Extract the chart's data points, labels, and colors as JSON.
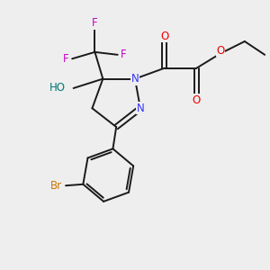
{
  "background_color": "#eeeeee",
  "atom_colors": {
    "C": "#000000",
    "N": "#3333ff",
    "O": "#ee0000",
    "F": "#cc00cc",
    "Br": "#cc7700",
    "H": "#007777"
  },
  "bond_color": "#1a1a1a",
  "lw": 1.4,
  "fs": 8.5
}
